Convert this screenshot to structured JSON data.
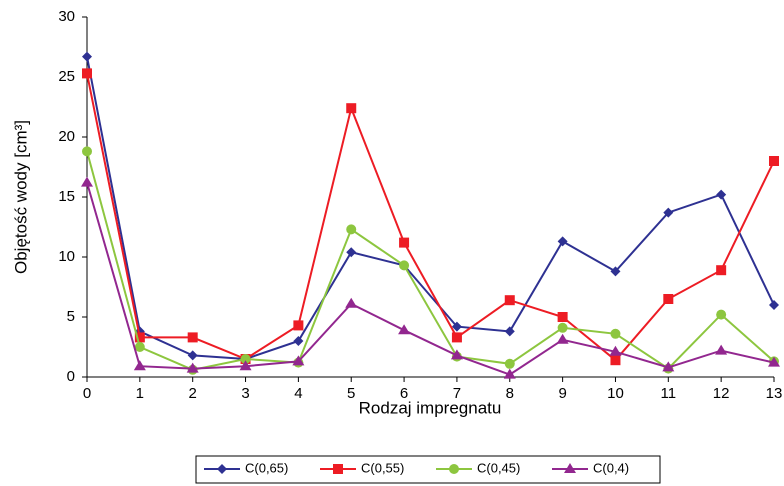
{
  "chart_data": {
    "type": "line",
    "xlabel": "Rodzaj impregnatu",
    "ylabel": "Objętość wody [cm³]",
    "x": [
      0,
      1,
      2,
      3,
      4,
      5,
      6,
      7,
      8,
      9,
      10,
      11,
      12,
      13
    ],
    "xlim": [
      0,
      13
    ],
    "xticks": [
      0,
      1,
      2,
      3,
      4,
      5,
      6,
      7,
      8,
      9,
      10,
      11,
      12,
      13
    ],
    "ylim": [
      0,
      30
    ],
    "yticks": [
      0,
      5,
      10,
      15,
      20,
      25,
      30
    ],
    "grid": false,
    "legend": "bottom",
    "series": [
      {
        "name": "C(0,65)",
        "color": "#2e3192",
        "marker": "diamond",
        "values": [
          26.7,
          3.8,
          1.8,
          1.5,
          3.0,
          10.4,
          9.3,
          4.2,
          3.8,
          11.3,
          8.8,
          13.7,
          15.2,
          6.0
        ]
      },
      {
        "name": "C(0,55)",
        "color": "#ed1c24",
        "marker": "square",
        "values": [
          25.3,
          3.3,
          3.3,
          1.5,
          4.3,
          22.4,
          11.2,
          3.3,
          6.4,
          5.0,
          1.4,
          6.5,
          8.9,
          18.0
        ]
      },
      {
        "name": "C(0,45)",
        "color": "#8dc63f",
        "marker": "circle",
        "values": [
          18.8,
          2.5,
          0.6,
          1.5,
          1.2,
          12.3,
          9.3,
          1.7,
          1.1,
          4.1,
          3.6,
          0.7,
          5.2,
          1.3
        ]
      },
      {
        "name": "C(0,4)",
        "color": "#92278f",
        "marker": "triangle",
        "values": [
          16.2,
          0.9,
          0.7,
          0.9,
          1.3,
          6.1,
          3.9,
          1.8,
          0.2,
          3.1,
          2.1,
          0.8,
          2.2,
          1.2
        ]
      }
    ]
  }
}
